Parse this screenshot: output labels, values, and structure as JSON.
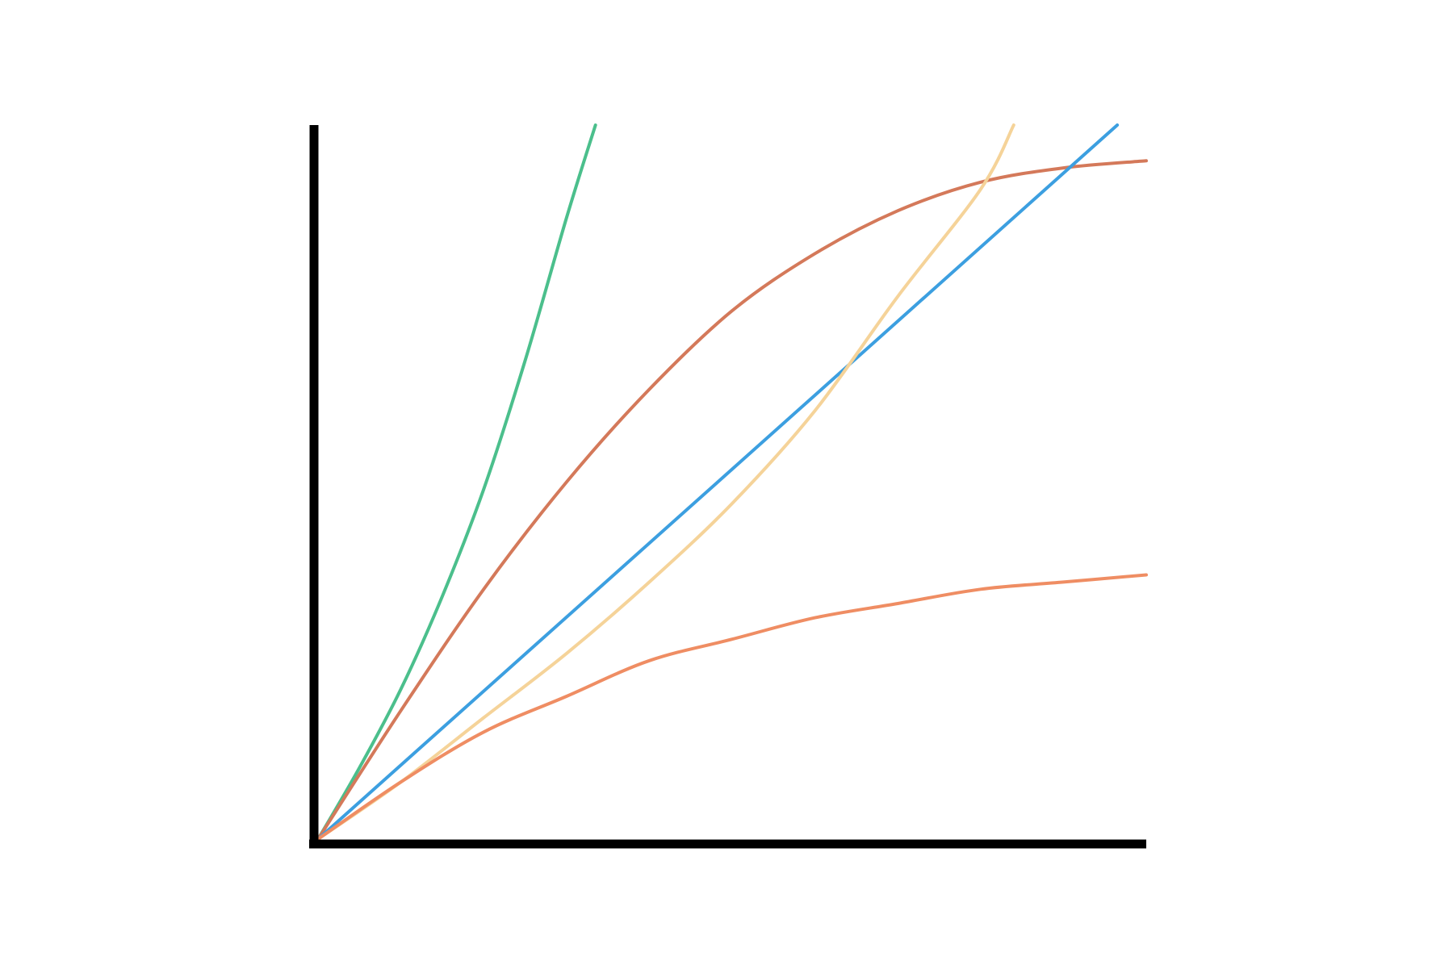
{
  "chart_data": {
    "type": "line",
    "title": "",
    "xlabel": "",
    "ylabel": "",
    "xlim": [
      0,
      1
    ],
    "ylim": [
      0,
      1
    ],
    "grid": false,
    "legend": "none",
    "ticks": false,
    "series": [
      {
        "color": "#4bbf8c",
        "points": [
          [
            0,
            0
          ],
          [
            0.05,
            0.1
          ],
          [
            0.1,
            0.21
          ],
          [
            0.15,
            0.34
          ],
          [
            0.2,
            0.49
          ],
          [
            0.25,
            0.67
          ],
          [
            0.3,
            0.87
          ],
          [
            0.335,
            1.0
          ]
        ]
      },
      {
        "color": "#d4795a",
        "points": [
          [
            0,
            0
          ],
          [
            0.1,
            0.18
          ],
          [
            0.2,
            0.35
          ],
          [
            0.3,
            0.5
          ],
          [
            0.4,
            0.63
          ],
          [
            0.5,
            0.74
          ],
          [
            0.6,
            0.82
          ],
          [
            0.7,
            0.88
          ],
          [
            0.8,
            0.92
          ],
          [
            0.9,
            0.94
          ],
          [
            1.0,
            0.95
          ]
        ]
      },
      {
        "color": "#3c9fe0",
        "points": [
          [
            0,
            0
          ],
          [
            0.965,
            1.0
          ]
        ]
      },
      {
        "color": "#f5d399",
        "points": [
          [
            0,
            0
          ],
          [
            0.1,
            0.08
          ],
          [
            0.2,
            0.17
          ],
          [
            0.3,
            0.26
          ],
          [
            0.4,
            0.36
          ],
          [
            0.5,
            0.47
          ],
          [
            0.6,
            0.6
          ],
          [
            0.7,
            0.76
          ],
          [
            0.8,
            0.91
          ],
          [
            0.84,
            1.0
          ]
        ]
      },
      {
        "color": "#ef8d63",
        "points": [
          [
            0,
            0
          ],
          [
            0.1,
            0.08
          ],
          [
            0.2,
            0.15
          ],
          [
            0.3,
            0.2
          ],
          [
            0.4,
            0.25
          ],
          [
            0.5,
            0.28
          ],
          [
            0.6,
            0.31
          ],
          [
            0.7,
            0.33
          ],
          [
            0.8,
            0.35
          ],
          [
            0.9,
            0.36
          ],
          [
            1.0,
            0.37
          ]
        ]
      }
    ]
  }
}
